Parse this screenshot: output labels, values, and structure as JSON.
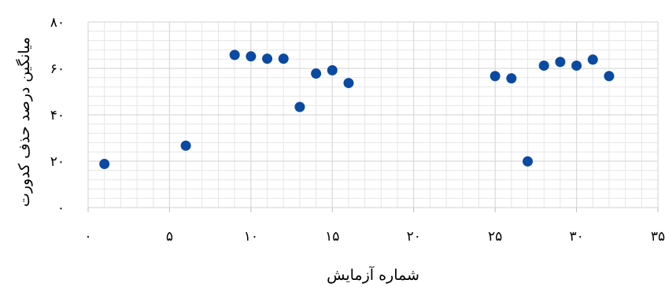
{
  "chart_data": {
    "type": "scatter",
    "xlabel": "شماره آزمایش",
    "ylabel": "میانگین درصد حذف کدورت",
    "xlim": [
      0,
      35
    ],
    "ylim": [
      0,
      80
    ],
    "x_ticks": [
      0,
      5,
      10,
      15,
      20,
      25,
      30,
      35
    ],
    "y_ticks": [
      0,
      20,
      40,
      60,
      80
    ],
    "x_tick_labels": [
      "۰",
      "۵",
      "۱۰",
      "۱۵",
      "۲۰",
      "۲۵",
      "۳۰",
      "۳۵"
    ],
    "y_tick_labels": [
      "۰",
      "۲۰",
      "۴۰",
      "۶۰",
      "۸۰"
    ],
    "grid": true,
    "minor_grid": true,
    "marker_color": "#0b4aa2",
    "grid_color": "#d9d9d9",
    "points": [
      {
        "x": 1,
        "y": 18.8
      },
      {
        "x": 6,
        "y": 26.7
      },
      {
        "x": 9,
        "y": 65.8
      },
      {
        "x": 10,
        "y": 65.2
      },
      {
        "x": 11,
        "y": 64.2
      },
      {
        "x": 12,
        "y": 64.2
      },
      {
        "x": 13,
        "y": 43.4
      },
      {
        "x": 14,
        "y": 57.8
      },
      {
        "x": 15,
        "y": 59.2
      },
      {
        "x": 16,
        "y": 53.7
      },
      {
        "x": 25,
        "y": 56.7
      },
      {
        "x": 26,
        "y": 55.7
      },
      {
        "x": 27,
        "y": 19.9
      },
      {
        "x": 28,
        "y": 61.2
      },
      {
        "x": 29,
        "y": 62.8
      },
      {
        "x": 30,
        "y": 61.2
      },
      {
        "x": 31,
        "y": 63.8
      },
      {
        "x": 32,
        "y": 56.7
      }
    ]
  }
}
